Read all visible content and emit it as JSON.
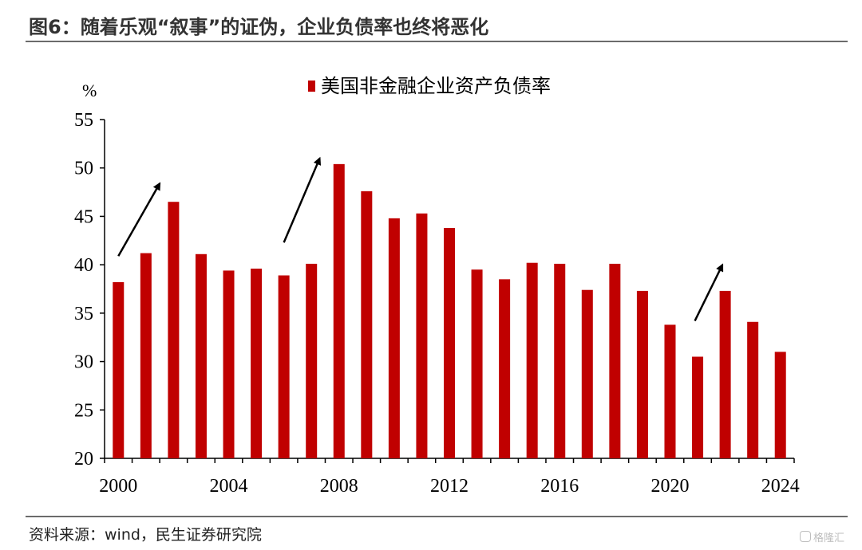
{
  "header": {
    "title": "图6：随着乐观“叙事”的证伪，企业负债率也终将恶化"
  },
  "footer": {
    "source": "资料来源：wind，民生证券研究院",
    "watermark": "格隆汇"
  },
  "colors": {
    "bar": "#c00000",
    "arrow": "#000000",
    "axis": "#000000",
    "rule": "#6b6b6b"
  },
  "chart_data": {
    "type": "bar",
    "ylabel": "%",
    "ylim": [
      20,
      55
    ],
    "yticks": [
      20,
      25,
      30,
      35,
      40,
      45,
      50,
      55
    ],
    "xtick_labels": [
      "2000",
      "2004",
      "2008",
      "2012",
      "2016",
      "2020",
      "2024"
    ],
    "grid": false,
    "legend_position": "top-center",
    "series": [
      {
        "name": "美国非金融企业资产负债率",
        "x": [
          2000,
          2001,
          2002,
          2003,
          2004,
          2005,
          2006,
          2007,
          2008,
          2009,
          2010,
          2011,
          2012,
          2013,
          2014,
          2015,
          2016,
          2017,
          2018,
          2019,
          2020,
          2021,
          2022,
          2023,
          2024
        ],
        "values": [
          38.2,
          41.2,
          46.5,
          41.1,
          39.4,
          39.6,
          38.9,
          40.1,
          50.4,
          47.6,
          44.8,
          45.3,
          43.8,
          39.5,
          38.5,
          40.2,
          40.1,
          37.4,
          40.1,
          37.3,
          33.8,
          30.5,
          37.3,
          34.1,
          31.0
        ]
      }
    ],
    "annotations": [
      {
        "type": "arrow",
        "from": [
          2000,
          40.9
        ],
        "to": [
          2001.5,
          48.4
        ]
      },
      {
        "type": "arrow",
        "from": [
          2006,
          42.3
        ],
        "to": [
          2007.3,
          51.0
        ]
      },
      {
        "type": "arrow",
        "from": [
          2020.9,
          34.2
        ],
        "to": [
          2021.9,
          40.0
        ]
      }
    ]
  }
}
